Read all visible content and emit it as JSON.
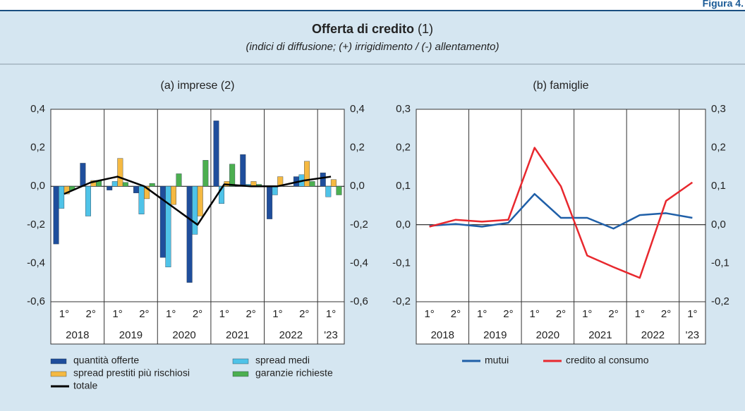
{
  "header": {
    "figure": "Figura 4.",
    "title": "Offerta di credito",
    "note": "(1)",
    "subtitle": "(indici di diffusione; (+) irrigidimento / (-) allentamento)"
  },
  "chart_data": [
    {
      "type": "bar",
      "title": "(a) imprese (2)",
      "categories": [
        "1°",
        "2°",
        "1°",
        "2°",
        "1°",
        "2°",
        "1°",
        "2°",
        "1°",
        "2°",
        "1°"
      ],
      "groups": [
        "2018",
        "2019",
        "2020",
        "2021",
        "2022",
        "'23"
      ],
      "ylim": [
        -0.6,
        0.4
      ],
      "yticks": [
        {
          "value": -0.6,
          "label": "-0,6"
        },
        {
          "value": -0.4,
          "label": "-0,4"
        },
        {
          "value": -0.2,
          "label": "-0,2"
        },
        {
          "value": 0,
          "label": "0,0"
        },
        {
          "value": 0.2,
          "label": "0,2"
        },
        {
          "value": 0.4,
          "label": "0,4"
        }
      ],
      "legend": "bottom",
      "series": [
        {
          "name": "quantità offerte",
          "color": "#1f4e9c",
          "values": [
            -0.3,
            0.12,
            -0.02,
            -0.035,
            -0.37,
            -0.5,
            0.34,
            0.165,
            -0.17,
            0.05,
            0.07
          ]
        },
        {
          "name": "spread medi",
          "color": "#4fc3e8",
          "values": [
            -0.115,
            -0.155,
            0.025,
            -0.145,
            -0.42,
            -0.25,
            -0.09,
            0.01,
            -0.045,
            0.06,
            -0.055
          ]
        },
        {
          "name": "spread prestiti più rischiosi",
          "color": "#f5b942",
          "values": [
            -0.04,
            0.03,
            0.145,
            -0.065,
            -0.095,
            -0.155,
            0.025,
            0.025,
            0.05,
            0.13,
            0.035
          ]
        },
        {
          "name": "garanzie richieste",
          "color": "#4caf50",
          "values": [
            -0.02,
            0.03,
            0.02,
            0.015,
            0.065,
            0.135,
            0.115,
            0.01,
            0.0,
            0.025,
            -0.045
          ]
        },
        {
          "name": "totale",
          "color": "#000000",
          "type": "line",
          "values": [
            -0.04,
            0.02,
            0.05,
            0.0,
            -0.1,
            -0.2,
            0.01,
            0.0,
            0.0,
            0.03,
            0.05
          ]
        }
      ]
    },
    {
      "type": "line",
      "title": "(b) famiglie",
      "categories": [
        "1°",
        "2°",
        "1°",
        "2°",
        "1°",
        "2°",
        "1°",
        "2°",
        "1°",
        "2°",
        "1°"
      ],
      "groups": [
        "2018",
        "2019",
        "2020",
        "2021",
        "2022",
        "'23"
      ],
      "ylim": [
        -0.2,
        0.3
      ],
      "yticks": [
        {
          "value": -0.2,
          "label": "-0,2"
        },
        {
          "value": -0.1,
          "label": "-0,1"
        },
        {
          "value": 0,
          "label": "0,0"
        },
        {
          "value": 0.1,
          "label": "0,1"
        },
        {
          "value": 0.2,
          "label": "0,2"
        },
        {
          "value": 0.3,
          "label": "0,3"
        }
      ],
      "legend": "bottom",
      "series": [
        {
          "name": "mutui",
          "color": "#1f5fa8",
          "values": [
            -0.003,
            0.002,
            -0.005,
            0.005,
            0.08,
            0.018,
            0.018,
            -0.01,
            0.025,
            0.03,
            0.018
          ]
        },
        {
          "name": "credito al consumo",
          "color": "#e8282e",
          "values": [
            -0.005,
            0.013,
            0.008,
            0.013,
            0.2,
            0.1,
            -0.08,
            -0.11,
            -0.138,
            0.062,
            0.11
          ]
        }
      ]
    }
  ]
}
